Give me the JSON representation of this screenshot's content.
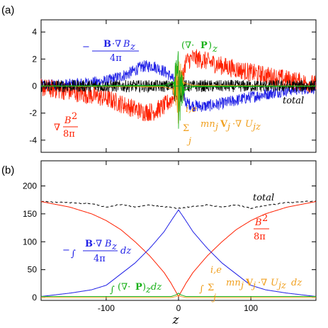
{
  "colors": {
    "blue": "#1f1fe6",
    "red": "#ff2000",
    "black": "#000000",
    "green": "#18b018",
    "orange": "#f0a020"
  },
  "chart_data": [
    {
      "panel": "(a)",
      "type": "line",
      "xlim": [
        -190,
        190
      ],
      "ylim": [
        -4.9,
        4.9
      ],
      "yticks": [
        -4,
        -2,
        0,
        2,
        4
      ],
      "ytick_labels": [
        "-4",
        "-2",
        "0",
        "2",
        "4"
      ],
      "xticks": [
        -100,
        0,
        100
      ],
      "annotations": {
        "magnetic_tension": "−B·∇B_z / 4π",
        "pressure_div": "(∇·P)_z",
        "mag_pressure": "∇ B²/8π",
        "momentum": "Σ_j^{i,e} mn_j V_j·∇U_jz",
        "total": "total"
      },
      "series": [
        {
          "name": "−B·∇B_z/4π",
          "color": "blue",
          "noise": 0.45,
          "x": [
            -190,
            -150,
            -100,
            -70,
            -50,
            -35,
            -20,
            -10,
            -5,
            0,
            5,
            10,
            20,
            35,
            60,
            100,
            150,
            190
          ],
          "y": [
            0.05,
            0.1,
            0.35,
            0.9,
            1.45,
            1.5,
            1.1,
            0.7,
            0.3,
            0,
            -0.3,
            -1.2,
            -1.45,
            -1.5,
            -1.3,
            -0.8,
            -0.3,
            -0.1
          ]
        },
        {
          "name": "∇B²/8π",
          "color": "red",
          "noise": 0.7,
          "x": [
            -190,
            -150,
            -100,
            -70,
            -50,
            -35,
            -20,
            -10,
            -5,
            0,
            5,
            10,
            20,
            35,
            60,
            100,
            150,
            190
          ],
          "y": [
            -0.1,
            -0.4,
            -0.9,
            -1.5,
            -1.9,
            -1.9,
            -1.5,
            -1.0,
            -0.5,
            0,
            0.5,
            1.8,
            2.1,
            1.9,
            1.5,
            1.0,
            0.5,
            0.1
          ]
        },
        {
          "name": "total",
          "color": "black",
          "noise": 0.45,
          "x": [
            -190,
            -100,
            0,
            100,
            190
          ],
          "y": [
            0,
            0,
            0,
            0,
            0
          ]
        },
        {
          "name": "Σ mn_j V_j·∇U_jz",
          "color": "orange",
          "noise": 0.02,
          "x": [
            -190,
            -20,
            -5,
            0,
            5,
            20,
            190
          ],
          "y": [
            0,
            -0.05,
            -0.3,
            0,
            0.3,
            0.05,
            0
          ]
        },
        {
          "name": "(∇·P)_z",
          "color": "green",
          "noise": 0.03,
          "x": [
            -190,
            -20,
            -5,
            0,
            5,
            20,
            190
          ],
          "y": [
            0,
            0.05,
            0.4,
            0,
            -0.4,
            -0.05,
            0
          ]
        }
      ]
    },
    {
      "panel": "(b)",
      "type": "line",
      "xlim": [
        -190,
        190
      ],
      "ylim": [
        -5,
        245
      ],
      "yticks": [
        0,
        50,
        100,
        150,
        200
      ],
      "ytick_labels": [
        "0",
        "50",
        "100",
        "150",
        "200"
      ],
      "xticks": [
        -100,
        0,
        100
      ],
      "xtick_labels": [
        "-100",
        "0",
        "100"
      ],
      "xlabel": "z",
      "annotations": {
        "total": "total",
        "mag_pressure": "B²/8π",
        "magnetic_tension": "−∫ B·∇B_z/4π dz",
        "pressure_div": "∫(∇·P)_z dz",
        "momentum": "∫ Σ_j^{i,e} mn_j V_j·∇U_jz dz"
      },
      "series": [
        {
          "name": "total",
          "color": "black",
          "dashed": true,
          "x": [
            -190,
            -150,
            -120,
            -100,
            -80,
            -60,
            -40,
            -20,
            0,
            20,
            40,
            60,
            80,
            100,
            120,
            150,
            190
          ],
          "y": [
            172,
            170,
            168,
            162,
            167,
            162,
            166,
            163,
            160,
            163,
            166,
            162,
            166,
            160,
            165,
            170,
            173
          ]
        },
        {
          "name": "B²/8π",
          "color": "red",
          "x": [
            -190,
            -150,
            -120,
            -100,
            -80,
            -60,
            -40,
            -20,
            -10,
            0,
            10,
            20,
            40,
            60,
            80,
            100,
            120,
            150,
            190
          ],
          "y": [
            172,
            162,
            150,
            138,
            122,
            100,
            75,
            45,
            25,
            2,
            25,
            45,
            75,
            100,
            122,
            138,
            150,
            162,
            172
          ]
        },
        {
          "name": "−∫B·∇B_z/4π dz",
          "color": "blue",
          "x": [
            -190,
            -150,
            -120,
            -100,
            -80,
            -60,
            -40,
            -20,
            -10,
            0,
            10,
            20,
            40,
            60,
            80,
            100,
            120,
            150,
            190
          ],
          "y": [
            2,
            8,
            14,
            22,
            42,
            62,
            88,
            118,
            138,
            157,
            138,
            118,
            88,
            62,
            42,
            22,
            14,
            8,
            2
          ]
        },
        {
          "name": "∫(∇·P)_z dz",
          "color": "green",
          "x": [
            -190,
            -10,
            -3,
            0,
            3,
            10,
            190
          ],
          "y": [
            2,
            2,
            5,
            8,
            5,
            2,
            2
          ]
        },
        {
          "name": "∫Σ mn_j V_j·∇U_jz dz",
          "color": "orange",
          "x": [
            -190,
            -10,
            -3,
            0,
            3,
            10,
            190
          ],
          "y": [
            0,
            0,
            2,
            4,
            2,
            0,
            0
          ]
        }
      ]
    }
  ],
  "panel_labels": [
    "(a)",
    "(b)"
  ]
}
